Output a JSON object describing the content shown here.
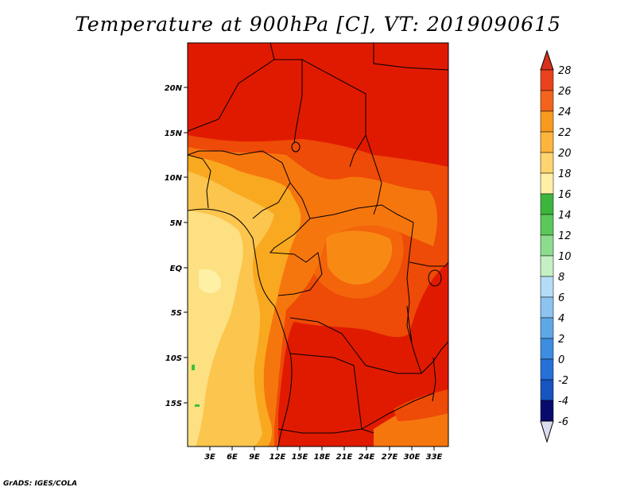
{
  "title": "Temperature at 900hPa [C], VT: 2019090615",
  "credit": "GrADS: IGES/COLA",
  "map": {
    "lat_labels": [
      "20N",
      "15N",
      "10N",
      "5N",
      "EQ",
      "5S",
      "10S",
      "15S"
    ],
    "lon_labels": [
      "3E",
      "6E",
      "9E",
      "12E",
      "15E",
      "18E",
      "21E",
      "24E",
      "27E",
      "30E",
      "33E"
    ]
  },
  "colorbar": {
    "levels": [
      "28",
      "26",
      "24",
      "22",
      "20",
      "18",
      "16",
      "14",
      "12",
      "10",
      "8",
      "6",
      "4",
      "2",
      "0",
      "-2",
      "-4",
      "-6"
    ],
    "colors": {
      "above_28": "#d7321e",
      "26_28": "#e8431d",
      "24_26": "#f2641c",
      "22_24": "#f99a1f",
      "20_22": "#fcb53c",
      "18_20": "#fdd46e",
      "16_18": "#fef0a5",
      "14_16": "#3cb53c",
      "12_14": "#5bc85b",
      "10_12": "#8ddc8d",
      "8_10": "#c4f0c4",
      "6_8": "#b4dcf6",
      "4_6": "#8cc3ef",
      "2_4": "#5ea8e8",
      "0_2": "#3d8de0",
      "m2_0": "#2571d8",
      "m4_m2": "#1654c0",
      "m6_m4": "#0a3494",
      "below_m6": "#080a6e"
    }
  },
  "map_colors": {
    "t28": "#e01a00",
    "t26": "#ee4a08",
    "t24": "#f6760e",
    "t22": "#f9a91f",
    "t20": "#fbc54e",
    "t18": "#fde082",
    "green": "#3cc03c"
  }
}
